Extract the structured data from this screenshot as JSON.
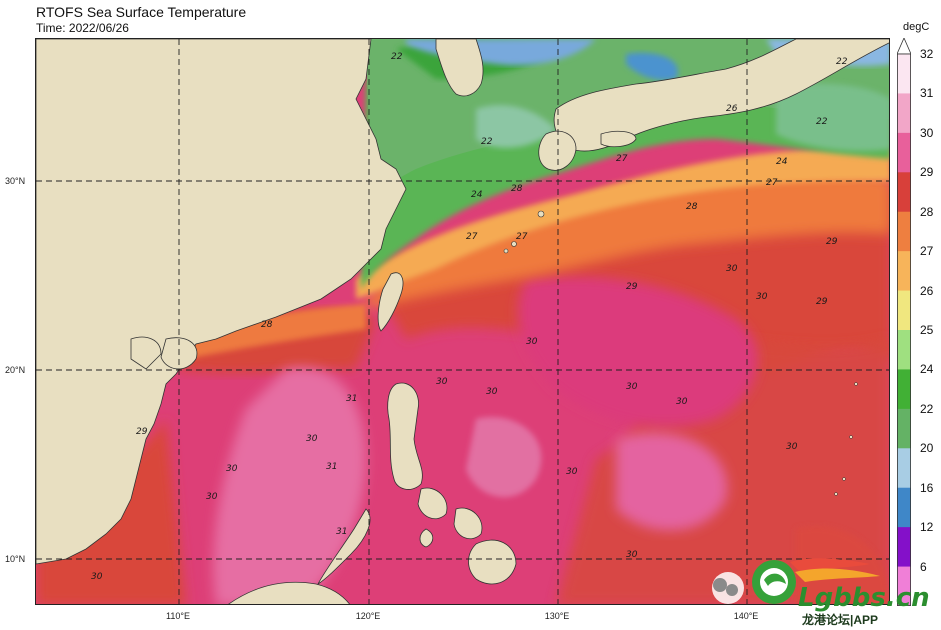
{
  "header": {
    "title": "RTOFS Sea Surface Temperature",
    "time": "Time: 2022/06/26"
  },
  "axes": {
    "x_ticks": [
      "110°E",
      "120°E",
      "130°E",
      "140°E"
    ],
    "y_ticks": [
      "30°N",
      "20°N",
      "10°N"
    ]
  },
  "colorbar": {
    "unit": "degC",
    "labels": [
      "32",
      "31",
      "30",
      "29",
      "28",
      "27",
      "26",
      "25",
      "24",
      "22",
      "20",
      "16",
      "12",
      "6"
    ],
    "colors": {
      "32": "#fbe6f1",
      "31": "#f2a6c8",
      "30": "#e8609b",
      "29": "#d8403a",
      "28": "#ee7f40",
      "27": "#f7b45a",
      "26": "#f0e77f",
      "25": "#9fe080",
      "24": "#41b035",
      "22": "#64b265",
      "20": "#a8cde4",
      "16": "#3f87c8",
      "12": "#8410c9",
      "6": "#f07fd7"
    }
  },
  "map": {
    "land_color": "#e8dfc1",
    "isotherm_labels": [
      "22",
      "24",
      "26",
      "27",
      "28",
      "29",
      "30",
      "31"
    ]
  },
  "watermark": {
    "site": "Lgbbs.cn",
    "caption": "龙港论坛|APP"
  }
}
